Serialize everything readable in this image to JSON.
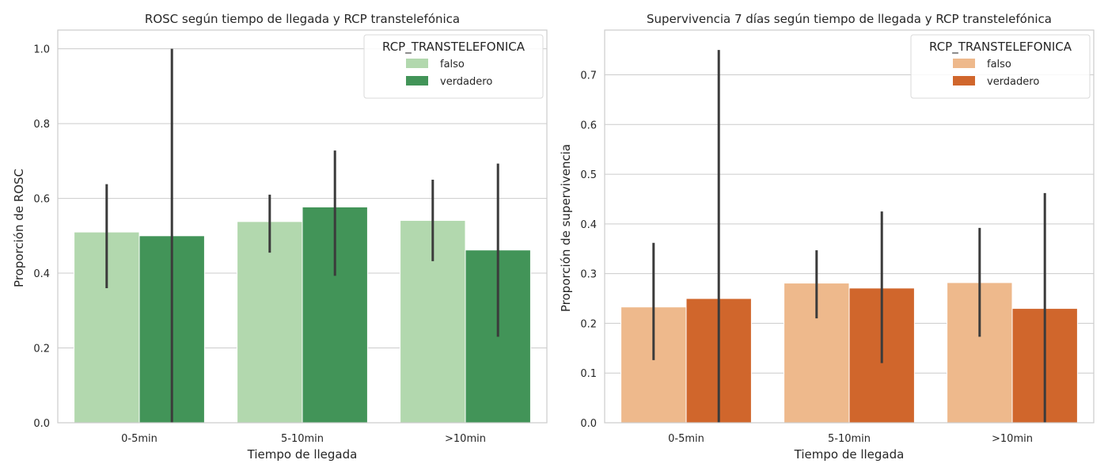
{
  "chart_data": [
    {
      "type": "bar",
      "title": "ROSC según tiempo de llegada y RCP transtelefónica",
      "xlabel": "Tiempo de llegada",
      "ylabel": "Proporción de ROSC",
      "categories": [
        "0-5min",
        "5-10min",
        ">10min"
      ],
      "ylim": [
        0,
        1.05
      ],
      "yticks": [
        0.0,
        0.2,
        0.4,
        0.6,
        0.8,
        1.0
      ],
      "ytick_labels": [
        "0.0",
        "0.2",
        "0.4",
        "0.6",
        "0.8",
        "1.0"
      ],
      "grid": true,
      "legend": {
        "title": "RCP_TRANSTELEFONICA",
        "position": "top-right"
      },
      "series": [
        {
          "name": "falso",
          "color": "#b2d8ae",
          "values": [
            0.51,
            0.538,
            0.541
          ],
          "ci_low": [
            0.36,
            0.455,
            0.432
          ],
          "ci_high": [
            0.638,
            0.61,
            0.65
          ]
        },
        {
          "name": "verdadero",
          "color": "#429458",
          "values": [
            0.5,
            0.577,
            0.462
          ],
          "ci_low": [
            0.0,
            0.393,
            0.23
          ],
          "ci_high": [
            1.0,
            0.728,
            0.693
          ]
        }
      ]
    },
    {
      "type": "bar",
      "title": "Supervivencia 7 días según tiempo de llegada y RCP transtelefónica",
      "xlabel": "Tiempo de llegada",
      "ylabel": "Proporción de supervivencia",
      "categories": [
        "0-5min",
        "5-10min",
        ">10min"
      ],
      "ylim": [
        0,
        0.79
      ],
      "yticks": [
        0.0,
        0.1,
        0.2,
        0.3,
        0.4,
        0.5,
        0.6,
        0.7
      ],
      "ytick_labels": [
        "0.0",
        "0.1",
        "0.2",
        "0.3",
        "0.4",
        "0.5",
        "0.6",
        "0.7"
      ],
      "grid": true,
      "legend": {
        "title": "RCP_TRANSTELEFONICA",
        "position": "top-right"
      },
      "series": [
        {
          "name": "falso",
          "color": "#eeb98c",
          "values": [
            0.233,
            0.281,
            0.282
          ],
          "ci_low": [
            0.126,
            0.21,
            0.173
          ],
          "ci_high": [
            0.362,
            0.347,
            0.392
          ]
        },
        {
          "name": "verdadero",
          "color": "#d0662c",
          "values": [
            0.25,
            0.271,
            0.23
          ],
          "ci_low": [
            0.0,
            0.12,
            0.0
          ],
          "ci_high": [
            0.75,
            0.425,
            0.462
          ]
        }
      ]
    }
  ]
}
